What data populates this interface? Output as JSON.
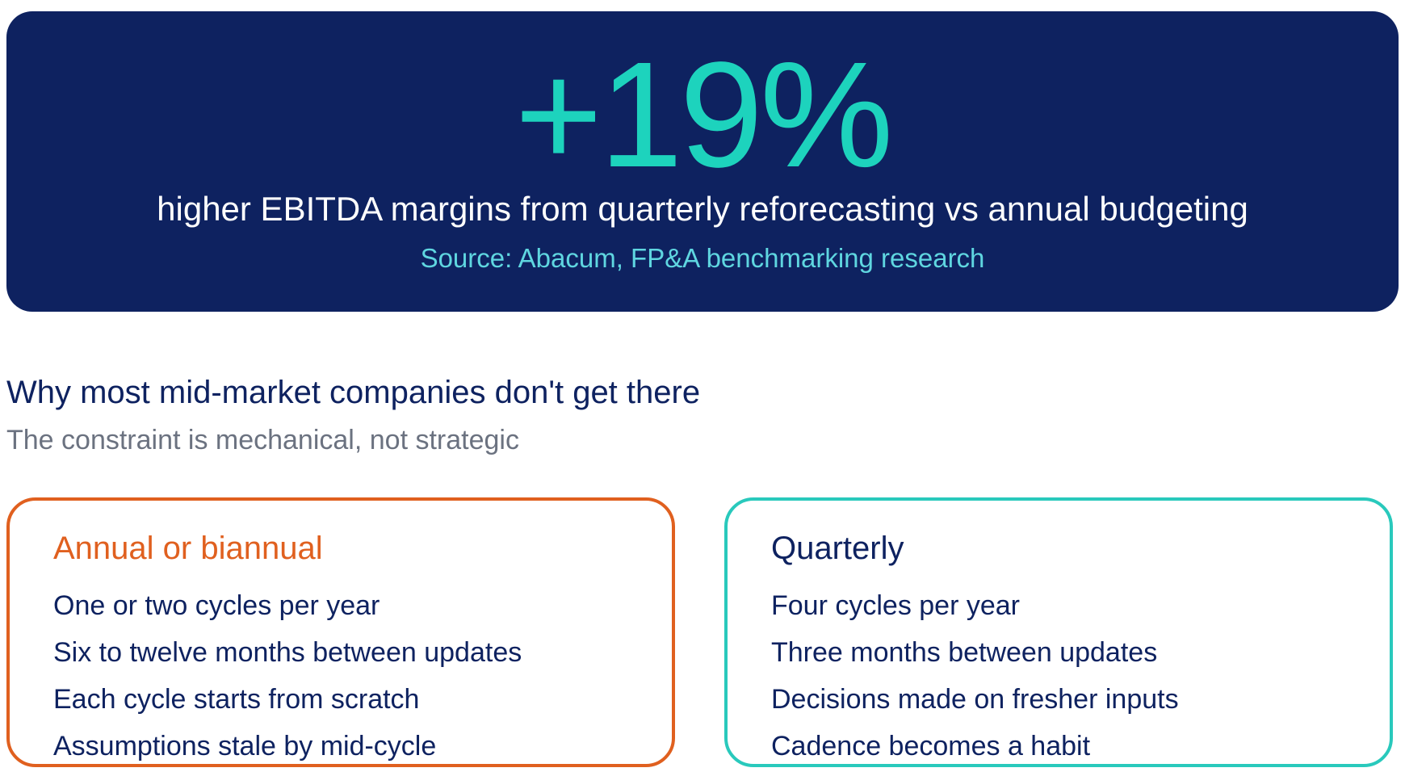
{
  "hero": {
    "stat": "+19%",
    "caption": "higher EBITDA margins from quarterly reforecasting vs annual budgeting",
    "source": "Source: Abacum, FP&A benchmarking research"
  },
  "section": {
    "title": "Why most mid-market companies don't get there",
    "subtitle": "The constraint is mechanical, not strategic"
  },
  "cards": [
    {
      "title": "Annual or biannual",
      "items": [
        "One or two cycles per year",
        "Six to twelve months between updates",
        "Each cycle starts from scratch",
        "Assumptions stale by mid-cycle"
      ]
    },
    {
      "title": "Quarterly",
      "items": [
        "Four cycles per year",
        "Three months between updates",
        "Decisions made on fresher inputs",
        "Cadence becomes a habit"
      ]
    }
  ],
  "colors": {
    "navy": "#0e2260",
    "teal": "#1dd3bd",
    "orange": "#e0601f",
    "source": "#5fd6e0",
    "muted": "#6b7280"
  }
}
